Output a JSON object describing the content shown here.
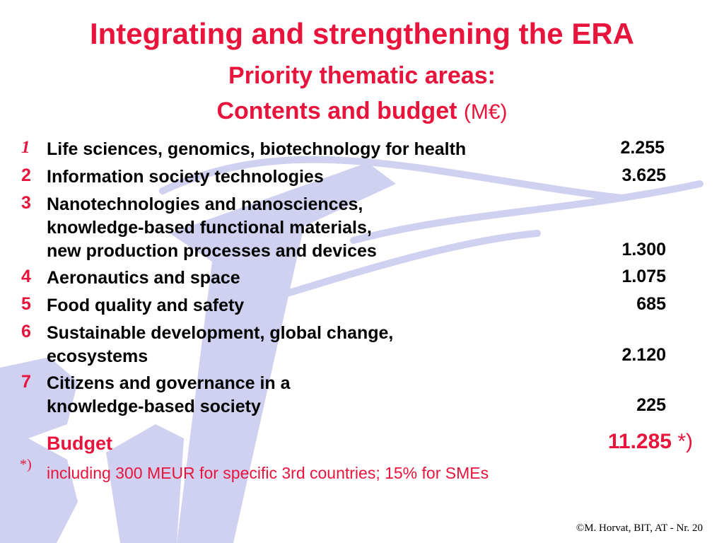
{
  "title": {
    "line1": "Integrating and strengthening the ERA",
    "line2": "Priority thematic areas:",
    "line3": "Contents and budget",
    "unit": "(M€)"
  },
  "items": [
    {
      "num": "1",
      "lines": [
        "Life sciences, genomics, biotechnology for health"
      ],
      "value": "2.255"
    },
    {
      "num": "2",
      "lines": [
        "Information society technologies"
      ],
      "value": "3.625"
    },
    {
      "num": "3",
      "lines": [
        "Nanotechnologies and nanosciences,",
        "knowledge-based functional materials,",
        "new production processes and devices"
      ],
      "value": "1.300"
    },
    {
      "num": "4",
      "lines": [
        "Aeronautics and space"
      ],
      "value": "1.075"
    },
    {
      "num": "5",
      "lines": [
        "Food quality and safety"
      ],
      "value": "685"
    },
    {
      "num": "6",
      "lines": [
        "Sustainable development, global change,",
        "ecosystems"
      ],
      "value": "2.120"
    },
    {
      "num": "7",
      "lines": [
        "Citizens and governance in a",
        "knowledge-based society"
      ],
      "value": "225"
    }
  ],
  "budget": {
    "label": "Budget",
    "value": "11.285",
    "marker": "*)"
  },
  "footnote": {
    "marker": "*)",
    "text": "including 300 MEUR for specific 3rd countries; 15% for SMEs"
  },
  "footer": {
    "copyright": "©M. Horvat, BIT, AT  - Nr. 20"
  },
  "colors": {
    "accent": "#e8143c",
    "watermark": "#c8c8ec"
  }
}
